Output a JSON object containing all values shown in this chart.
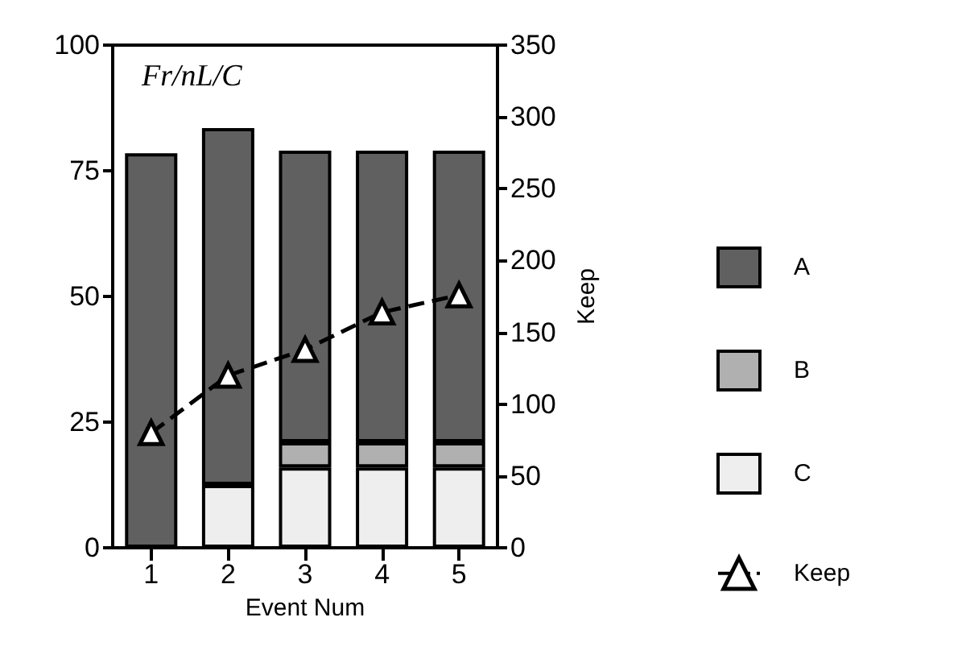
{
  "chart_data": {
    "type": "bar",
    "stacked": true,
    "xlabel": "Event Num",
    "y2label": "Keep",
    "annotations": [
      "Fr/nL/C"
    ],
    "categories": [
      "1",
      "2",
      "3",
      "4",
      "5"
    ],
    "series": [
      {
        "name": "C",
        "color": "#eeeeee",
        "values": [
          null,
          12.5,
          16,
          16,
          16
        ]
      },
      {
        "name": "B",
        "color": "#b0b0b0",
        "values": [
          null,
          null,
          5,
          5,
          5
        ]
      },
      {
        "name": "A",
        "color": "#606060",
        "values": [
          78.5,
          71,
          58,
          58,
          58
        ]
      },
      {
        "name": "Keep",
        "type": "line",
        "axis": "y2",
        "color": "#000000",
        "values": [
          80,
          120,
          138,
          164,
          176
        ],
        "marker": "triangle",
        "line_style": "dashed"
      }
    ],
    "ylim": [
      0,
      100
    ],
    "yticks": [
      0,
      25,
      50,
      75,
      100
    ],
    "y2lim": [
      0,
      350
    ],
    "y2ticks": [
      0,
      50,
      100,
      150,
      200,
      250,
      300,
      350
    ],
    "grid": false,
    "legend": "right"
  }
}
